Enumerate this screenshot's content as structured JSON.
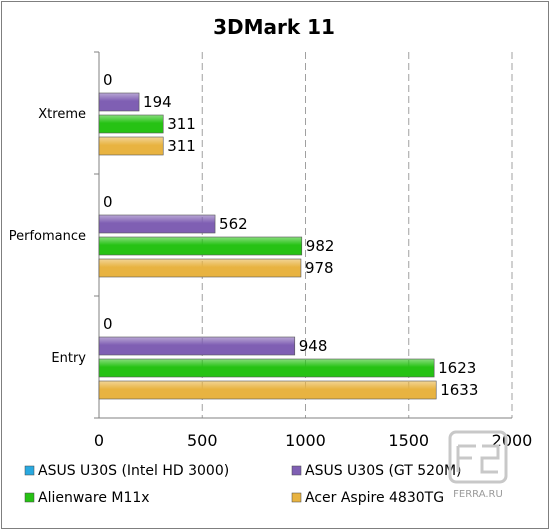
{
  "chart_data": {
    "type": "bar",
    "orientation": "horizontal",
    "title": "3DMark 11",
    "categories": [
      "Xtreme",
      "Perfomance",
      "Entry"
    ],
    "series": [
      {
        "name": "ASUS U30S (Intel HD 3000)",
        "values": [
          0,
          0,
          0
        ],
        "color": "#29a9e0"
      },
      {
        "name": "ASUS U30S (GT 520M)",
        "values": [
          194,
          562,
          948
        ],
        "color": "#7f5fb3"
      },
      {
        "name": "Alienware M11x",
        "values": [
          311,
          982,
          1623
        ],
        "color": "#26c214"
      },
      {
        "name": "Acer Aspire 4830TG",
        "values": [
          311,
          978,
          1633
        ],
        "color": "#e8b341"
      }
    ],
    "xlim": [
      0,
      2000
    ],
    "xticks": [
      "0",
      "500",
      "1000",
      "1500",
      "2000"
    ],
    "grid": "vertical-dashed",
    "legend": "bottom"
  },
  "watermark": "FERRA.RU"
}
